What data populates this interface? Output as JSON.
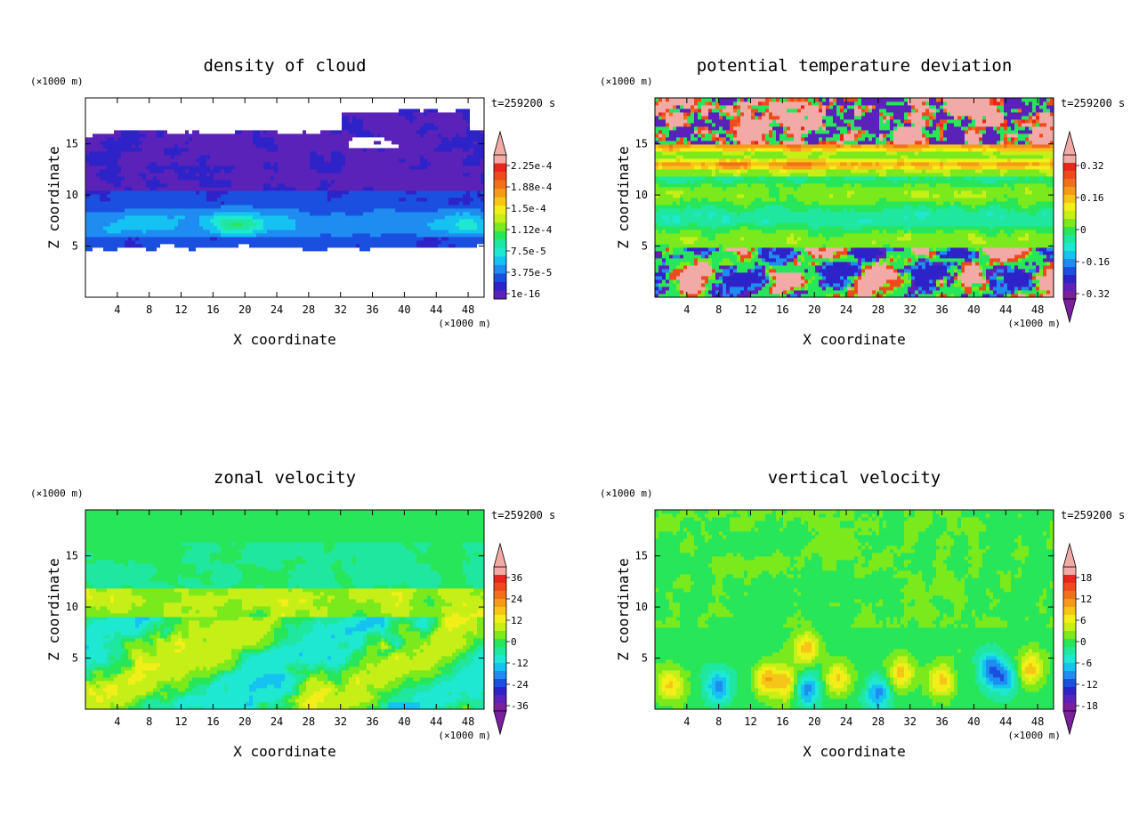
{
  "colors": {
    "palette": [
      "#7a1f9e",
      "#5a22b8",
      "#2d23c8",
      "#1a4fe0",
      "#1e8cf0",
      "#15c2f2",
      "#1ee8d2",
      "#20e7a0",
      "#28e65a",
      "#7bea1c",
      "#c6ef18",
      "#f2ef18",
      "#f5c518",
      "#f59a16",
      "#f2701a",
      "#ef4a1e",
      "#e8261e",
      "#f2aaa6"
    ],
    "white": "#ffffff"
  },
  "chart_data": [
    {
      "type": "heatmap",
      "title": "density of cloud",
      "xlabel": "X coordinate",
      "ylabel": "Z coordinate",
      "x_unit": "(×1000 m)",
      "y_unit": "(×1000 m)",
      "time_label": "t=259200 s",
      "x_ticks": [
        4,
        8,
        12,
        16,
        20,
        24,
        28,
        32,
        36,
        40,
        44,
        48
      ],
      "y_ticks": [
        5,
        10,
        15
      ],
      "xlim": [
        0,
        50
      ],
      "ylim": [
        0,
        19.5
      ],
      "colorbar_labels": [
        "2.25e-4",
        "1.88e-4",
        "1.5e-4",
        "1.12e-4",
        "7.5e-5",
        "3.75e-5",
        "1e-16"
      ],
      "colorbar_arrows": "top",
      "field": "cloud"
    },
    {
      "type": "heatmap",
      "title": "potential temperature deviation",
      "xlabel": "X coordinate",
      "ylabel": "Z coordinate",
      "x_unit": "(×1000 m)",
      "y_unit": "(×1000 m)",
      "time_label": "t=259200 s",
      "x_ticks": [
        4,
        8,
        12,
        16,
        20,
        24,
        28,
        32,
        36,
        40,
        44,
        48
      ],
      "y_ticks": [
        5,
        10,
        15
      ],
      "xlim": [
        0,
        50
      ],
      "ylim": [
        0,
        19.5
      ],
      "colorbar_labels": [
        "0.32",
        "0.16",
        "0",
        "-0.16",
        "-0.32"
      ],
      "colorbar_arrows": "both",
      "field": "theta"
    },
    {
      "type": "heatmap",
      "title": "zonal velocity",
      "xlabel": "X coordinate",
      "ylabel": "Z coordinate",
      "x_unit": "(×1000 m)",
      "y_unit": "(×1000 m)",
      "time_label": "t=259200 s",
      "x_ticks": [
        4,
        8,
        12,
        16,
        20,
        24,
        28,
        32,
        36,
        40,
        44,
        48
      ],
      "y_ticks": [
        5,
        10,
        15
      ],
      "xlim": [
        0,
        50
      ],
      "ylim": [
        0,
        19.5
      ],
      "colorbar_labels": [
        "36",
        "24",
        "12",
        "0",
        "-12",
        "-24",
        "-36"
      ],
      "colorbar_arrows": "both",
      "field": "u"
    },
    {
      "type": "heatmap",
      "title": "vertical velocity",
      "xlabel": "X coordinate",
      "ylabel": "Z coordinate",
      "x_unit": "(×1000 m)",
      "y_unit": "(×1000 m)",
      "time_label": "t=259200 s",
      "x_ticks": [
        4,
        8,
        12,
        16,
        20,
        24,
        28,
        32,
        36,
        40,
        44,
        48
      ],
      "y_ticks": [
        5,
        10,
        15
      ],
      "xlim": [
        0,
        50
      ],
      "ylim": [
        0,
        19.5
      ],
      "colorbar_labels": [
        "18",
        "12",
        "6",
        "0",
        "-6",
        "-12",
        "-18"
      ],
      "colorbar_arrows": "both",
      "field": "w"
    }
  ]
}
